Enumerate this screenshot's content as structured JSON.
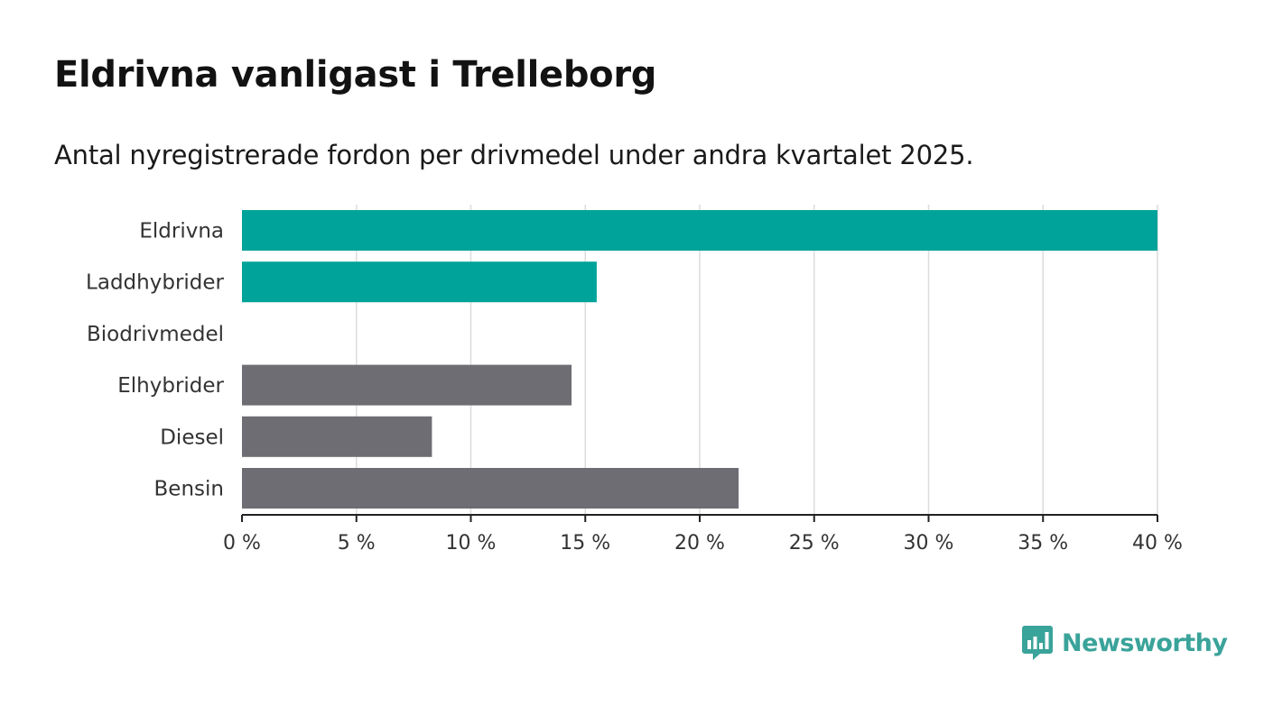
{
  "title": "Eldrivna vanligast i Trelleborg",
  "subtitle": "Antal nyregistrerade fordon per drivmedel under andra kvartalet 2025.",
  "brand": {
    "name": "Newsworthy",
    "color": "#3aa39a"
  },
  "colors": {
    "highlight": "#00a39a",
    "default": "#6e6d73",
    "grid": "#dcdcdc",
    "axis": "#222222"
  },
  "chart_data": {
    "type": "bar",
    "orientation": "horizontal",
    "categories": [
      "Eldrivna",
      "Laddhybrider",
      "Biodrivmedel",
      "Elhybrider",
      "Diesel",
      "Bensin"
    ],
    "values": [
      40.0,
      15.5,
      0,
      14.4,
      8.3,
      21.7
    ],
    "highlighted": [
      true,
      true,
      false,
      false,
      false,
      false
    ],
    "xlim": [
      0,
      40
    ],
    "ticks": [
      0,
      5,
      10,
      15,
      20,
      25,
      30,
      35,
      40
    ],
    "tick_labels": [
      "0 %",
      "5 %",
      "10 %",
      "15 %",
      "20 %",
      "25 %",
      "30 %",
      "35 %",
      "40 %"
    ],
    "grid": true,
    "legend": "none"
  }
}
